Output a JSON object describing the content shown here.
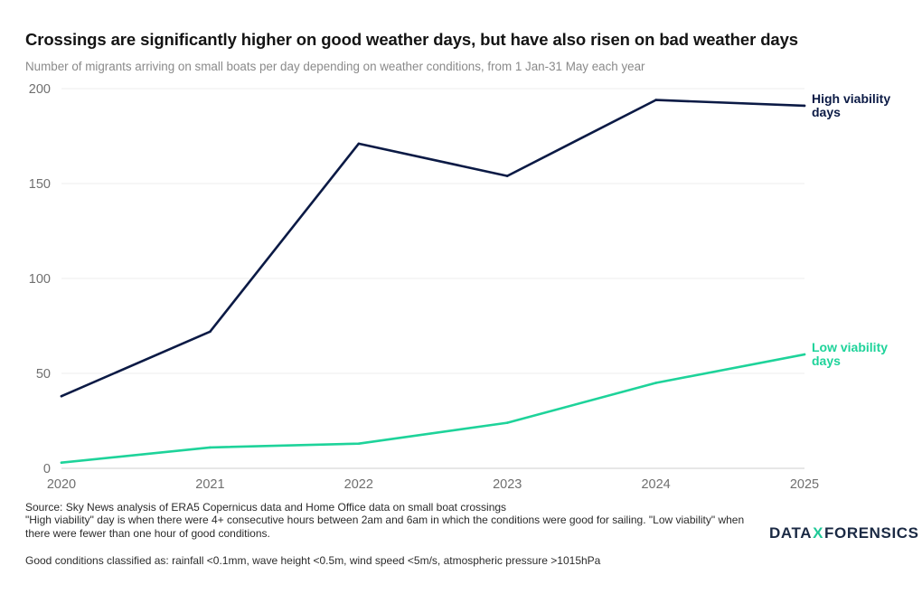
{
  "chart_data": {
    "type": "line",
    "title": "Crossings are significantly higher on good weather days, but have also risen on bad weather days",
    "subtitle": "Number of migrants arriving on small boats per day depending on weather conditions, from 1 Jan-31 May each year",
    "x": [
      "2020",
      "2021",
      "2022",
      "2023",
      "2024",
      "2025"
    ],
    "ylim": [
      0,
      200
    ],
    "yticks": [
      0,
      50,
      100,
      150,
      200
    ],
    "grid": true,
    "xlabel": "",
    "ylabel": "",
    "series": [
      {
        "name": "High viability days",
        "label_lines": [
          "High viability",
          "days"
        ],
        "color": "#0b1a45",
        "values": [
          38,
          72,
          171,
          154,
          194,
          191
        ]
      },
      {
        "name": "Low viability days",
        "label_lines": [
          "Low viability",
          "days"
        ],
        "color": "#1ed39a",
        "values": [
          3,
          11,
          13,
          24,
          45,
          60
        ]
      }
    ]
  },
  "footer": {
    "source": "Source: Sky News analysis of ERA5 Copernicus data and Home Office data on small boat crossings",
    "definition": "\"High viability\" day is when there were 4+ consecutive hours between 2am and 6am in which the conditions were good for sailing. \"Low viability\" when there were fewer than one hour of good conditions.",
    "conditions": "Good conditions classified as: rainfall <0.1mm, wave height <0.5m, wind speed <5m/s, atmospheric pressure >1015hPa"
  },
  "logo": {
    "left": "DATA",
    "mid": "X",
    "right": "FORENSICS"
  }
}
